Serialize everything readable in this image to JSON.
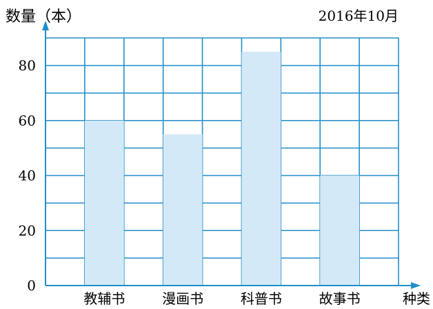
{
  "chart_data": {
    "type": "bar",
    "title": "",
    "date_label": "2016年10月",
    "ylabel": "数量（本）",
    "xlabel": "种类",
    "categories": [
      "教辅书",
      "漫画书",
      "科普书",
      "故事书"
    ],
    "values": [
      60,
      55,
      85,
      40
    ],
    "ylim": [
      0,
      90
    ],
    "yticks": [
      0,
      20,
      40,
      60,
      80
    ],
    "grid": true,
    "colors": {
      "bar": "#d4e9f7",
      "grid": "#1f8ec9",
      "axis": "#1f8ec9",
      "text": "#000000"
    }
  }
}
